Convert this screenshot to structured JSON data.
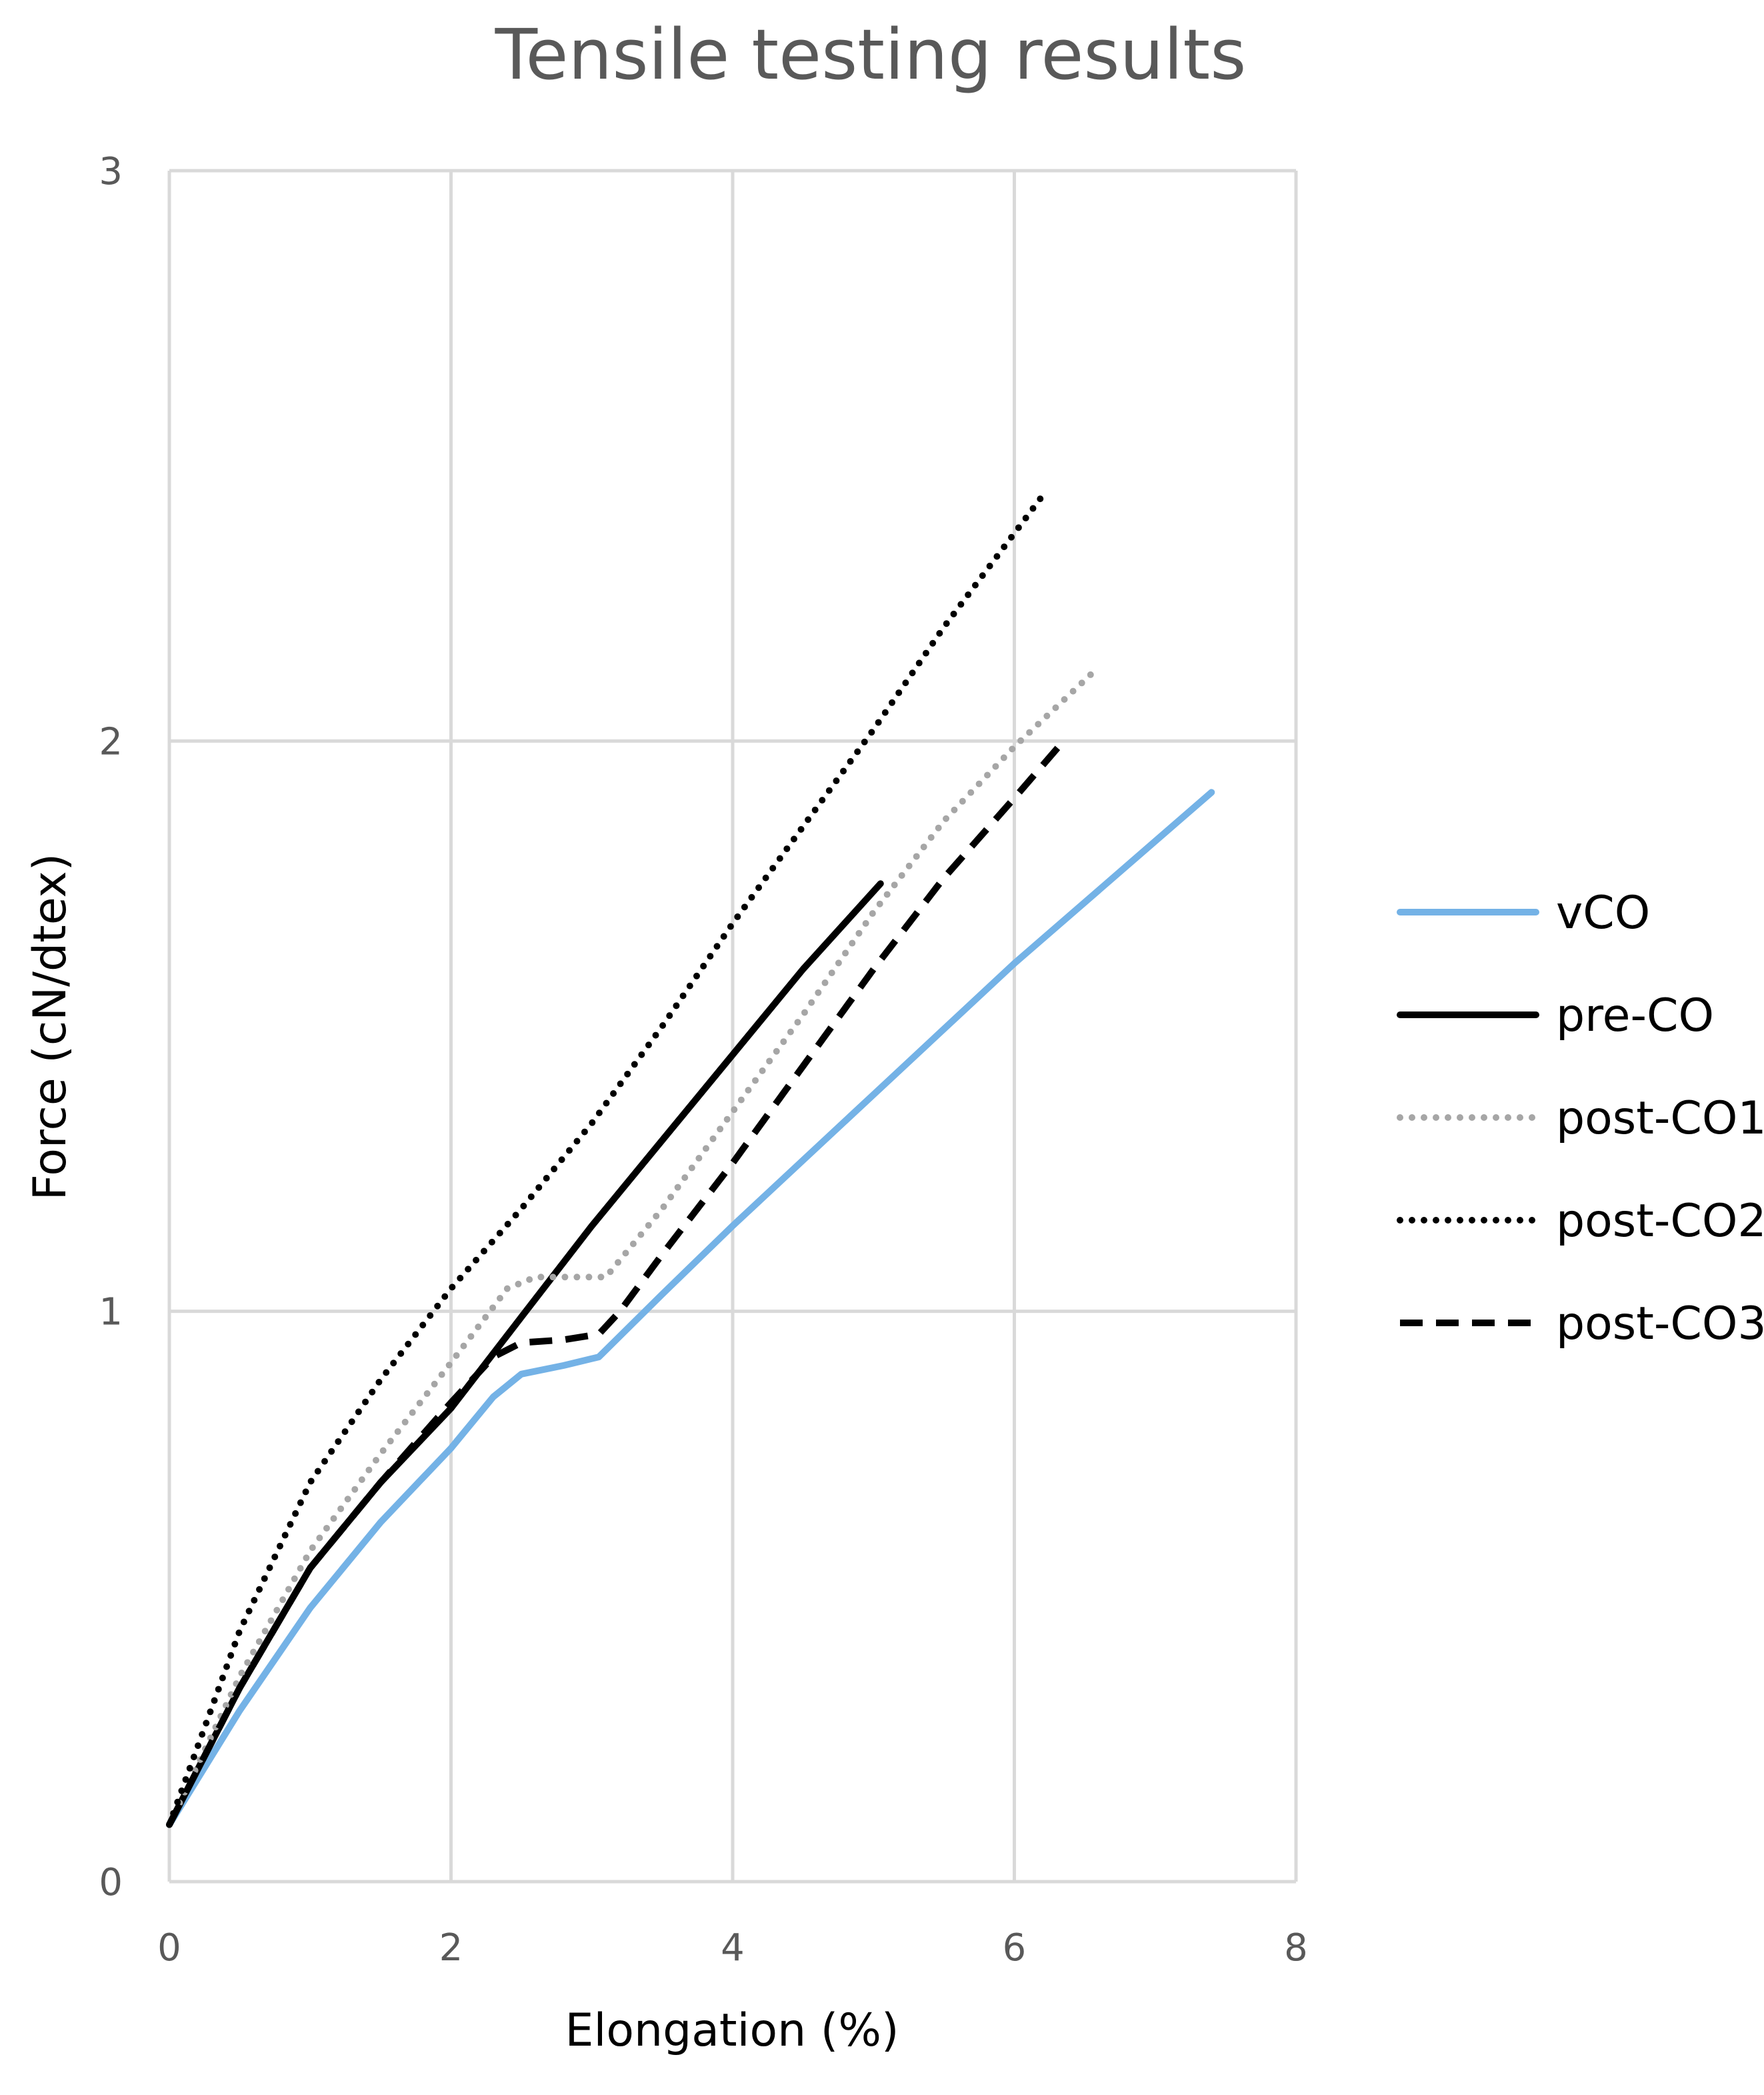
{
  "chart_data": {
    "type": "line",
    "title": "Tensile testing results",
    "xlabel": "Elongation (%)",
    "ylabel": "Force (cN/dtex)",
    "xlim": [
      0,
      8
    ],
    "ylim": [
      0,
      3
    ],
    "xticks": [
      "0",
      "2",
      "4",
      "6",
      "8"
    ],
    "yticks": [
      "0",
      "1",
      "2",
      "3"
    ],
    "grid": true,
    "legend_position": "right",
    "series": [
      {
        "name": "vCO",
        "color": "#74b2e6",
        "style": "solid",
        "points": [
          [
            0,
            0.1
          ],
          [
            0.5,
            0.3
          ],
          [
            1,
            0.48
          ],
          [
            1.5,
            0.63
          ],
          [
            2,
            0.76
          ],
          [
            2.3,
            0.85
          ],
          [
            2.5,
            0.89
          ],
          [
            2.8,
            0.905
          ],
          [
            3.05,
            0.92
          ],
          [
            3.5,
            1.03
          ],
          [
            4,
            1.15
          ],
          [
            5,
            1.38
          ],
          [
            6,
            1.61
          ],
          [
            7.4,
            1.91
          ]
        ]
      },
      {
        "name": "pre-CO",
        "color": "#000000",
        "style": "solid",
        "points": [
          [
            0,
            0.1
          ],
          [
            0.5,
            0.34
          ],
          [
            1,
            0.55
          ],
          [
            1.5,
            0.7
          ],
          [
            2,
            0.83
          ],
          [
            2.5,
            0.99
          ],
          [
            3,
            1.15
          ],
          [
            3.5,
            1.3
          ],
          [
            4,
            1.45
          ],
          [
            4.5,
            1.6
          ],
          [
            5.05,
            1.75
          ]
        ]
      },
      {
        "name": "post-CO1",
        "color": "#a6a6a6",
        "style": "dotted",
        "points": [
          [
            0,
            0.1
          ],
          [
            0.5,
            0.36
          ],
          [
            1,
            0.58
          ],
          [
            1.5,
            0.75
          ],
          [
            2,
            0.91
          ],
          [
            2.4,
            1.04
          ],
          [
            2.6,
            1.06
          ],
          [
            3,
            1.06
          ],
          [
            3.1,
            1.06
          ],
          [
            3.5,
            1.18
          ],
          [
            4,
            1.35
          ],
          [
            4.5,
            1.52
          ],
          [
            5,
            1.7
          ],
          [
            5.5,
            1.86
          ],
          [
            6,
            1.99
          ],
          [
            6.6,
            2.13
          ]
        ]
      },
      {
        "name": "post-CO2",
        "color": "#000000",
        "style": "dotted",
        "points": [
          [
            0,
            0.1
          ],
          [
            0.5,
            0.44
          ],
          [
            1,
            0.7
          ],
          [
            1.5,
            0.88
          ],
          [
            2,
            1.04
          ],
          [
            2.5,
            1.18
          ],
          [
            3,
            1.33
          ],
          [
            3.5,
            1.5
          ],
          [
            4,
            1.68
          ],
          [
            4.5,
            1.85
          ],
          [
            5,
            2.02
          ],
          [
            5.5,
            2.2
          ],
          [
            6.2,
            2.43
          ]
        ]
      },
      {
        "name": "post-CO3",
        "color": "#000000",
        "style": "dashed",
        "points": [
          [
            0,
            0.1
          ],
          [
            0.5,
            0.34
          ],
          [
            1,
            0.55
          ],
          [
            1.5,
            0.7
          ],
          [
            2,
            0.84
          ],
          [
            2.3,
            0.92
          ],
          [
            2.5,
            0.945
          ],
          [
            2.8,
            0.95
          ],
          [
            3.05,
            0.96
          ],
          [
            3.2,
            1.0
          ],
          [
            3.5,
            1.1
          ],
          [
            4,
            1.26
          ],
          [
            4.5,
            1.43
          ],
          [
            5,
            1.6
          ],
          [
            5.5,
            1.76
          ],
          [
            6,
            1.9
          ],
          [
            6.35,
            2.0
          ]
        ]
      }
    ]
  }
}
